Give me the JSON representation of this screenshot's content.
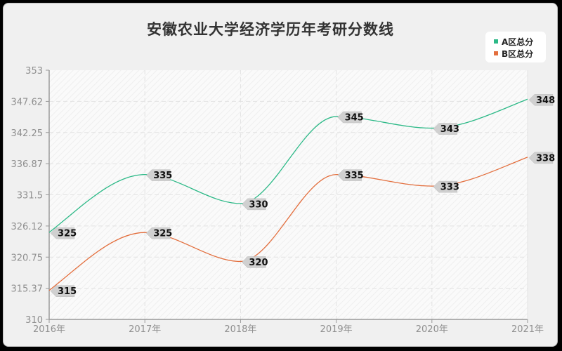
{
  "title": "安徽农业大学经济学历年考研分数线",
  "legend": [
    {
      "label": "A区总分",
      "color": "#2cb987"
    },
    {
      "label": "B区总分",
      "color": "#e36f3e"
    }
  ],
  "y_axis": {
    "ticks": [
      "353",
      "347.62",
      "342.25",
      "336.87",
      "331.5",
      "326.12",
      "320.75",
      "315.37",
      "310"
    ]
  },
  "x_axis": {
    "ticks": [
      "2016年",
      "2017年",
      "2018年",
      "2019年",
      "2020年",
      "2021年"
    ]
  },
  "chart_data": {
    "type": "line",
    "title": "安徽农业大学经济学历年考研分数线",
    "xlabel": "",
    "ylabel": "",
    "categories": [
      "2016年",
      "2017年",
      "2018年",
      "2019年",
      "2020年",
      "2021年"
    ],
    "series": [
      {
        "name": "A区总分",
        "values": [
          325,
          335,
          330,
          345,
          343,
          348
        ],
        "color": "#2cb987"
      },
      {
        "name": "B区总分",
        "values": [
          315,
          325,
          320,
          335,
          333,
          338
        ],
        "color": "#e36f3e"
      }
    ],
    "ylim": [
      310,
      353
    ],
    "yticks": [
      353,
      347.62,
      342.25,
      336.87,
      331.5,
      326.12,
      320.75,
      315.37,
      310
    ],
    "grid": true,
    "legend_position": "top-right",
    "smooth": true,
    "data_labels": true
  }
}
